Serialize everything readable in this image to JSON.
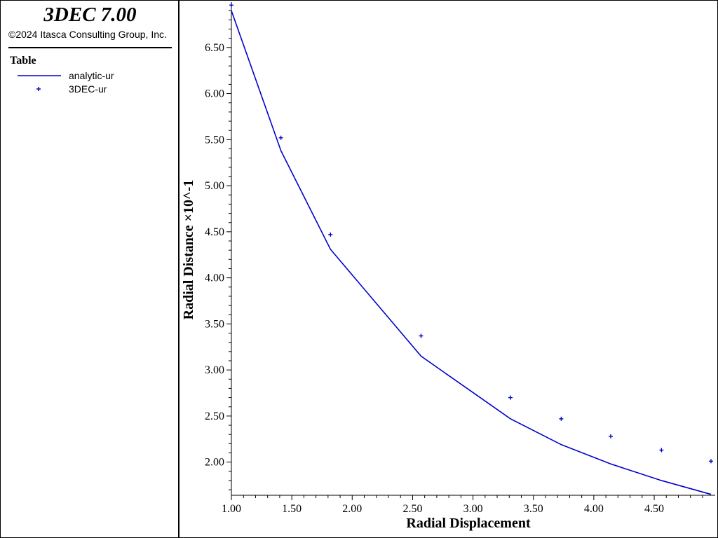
{
  "app": {
    "title": "3DEC 7.00",
    "copyright": "©2024 Itasca Consulting Group, Inc."
  },
  "legend": {
    "heading": "Table",
    "items": [
      {
        "label": "analytic-ur",
        "style": "line",
        "color": "#0000cc"
      },
      {
        "label": "3DEC-ur",
        "style": "plus-marker",
        "color": "#0000cc"
      }
    ]
  },
  "chart_data": {
    "type": "line",
    "title": "",
    "xlabel": "Radial Displacement",
    "ylabel": "Radial Distance ×10^-1",
    "xlim": [
      1.0,
      4.97
    ],
    "ylim": [
      1.64,
      6.97
    ],
    "x_ticks": [
      1.0,
      1.5,
      2.0,
      2.5,
      3.0,
      3.5,
      4.0,
      4.5
    ],
    "x_tick_labels": [
      "1.00",
      "1.50",
      "2.00",
      "2.50",
      "3.00",
      "3.50",
      "4.00",
      "4.50"
    ],
    "y_ticks": [
      2.0,
      2.5,
      3.0,
      3.5,
      4.0,
      4.5,
      5.0,
      5.5,
      6.0,
      6.5
    ],
    "y_tick_labels": [
      "2.00",
      "2.50",
      "3.00",
      "3.50",
      "4.00",
      "4.50",
      "5.00",
      "5.50",
      "6.00",
      "6.50"
    ],
    "grid": false,
    "legend_position": "left-panel",
    "series": [
      {
        "name": "analytic-ur",
        "style": "line",
        "color": "#0000cc",
        "x": [
          1.0,
          1.41,
          1.82,
          2.57,
          3.31,
          3.73,
          4.14,
          4.56,
          4.97
        ],
        "y": [
          6.9,
          5.38,
          4.31,
          3.15,
          2.47,
          2.19,
          1.98,
          1.8,
          1.65
        ]
      },
      {
        "name": "3DEC-ur",
        "style": "plus-marker",
        "color": "#0000cc",
        "x": [
          1.0,
          1.41,
          1.82,
          2.57,
          3.31,
          3.73,
          4.14,
          4.56,
          4.97
        ],
        "y": [
          6.96,
          5.52,
          4.47,
          3.37,
          2.7,
          2.47,
          2.28,
          2.13,
          2.01
        ]
      }
    ]
  }
}
